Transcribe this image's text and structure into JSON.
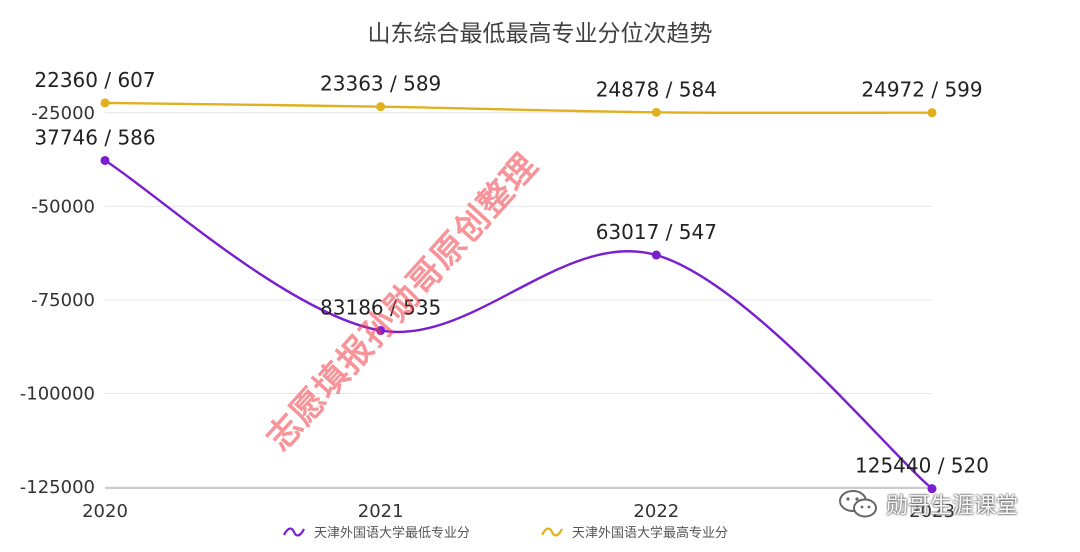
{
  "chart_data": {
    "type": "line",
    "title": "山东综合最低最高专业分位次趋势",
    "categories": [
      "2020",
      "2021",
      "2022",
      "2023"
    ],
    "yticks": [
      "-25000",
      "-50000",
      "-75000",
      "-100000",
      "-125000"
    ],
    "ylim": [
      -125000,
      -12500
    ],
    "grid": true,
    "legend_position": "bottom",
    "series": [
      {
        "name": "天津外国语大学最低专业分",
        "color": "#7a1fd0",
        "ranks": [
          37746,
          83186,
          63017,
          125440
        ],
        "scores": [
          586,
          535,
          547,
          520
        ],
        "labels": [
          "37746 / 586",
          "83186 / 535",
          "63017 / 547",
          "125440 / 520"
        ]
      },
      {
        "name": "天津外国语大学最高专业分",
        "color": "#e0b020",
        "ranks": [
          22360,
          23363,
          24878,
          24972
        ],
        "scores": [
          607,
          589,
          584,
          599
        ],
        "labels": [
          "22360 / 607",
          "23363 / 589",
          "24878 / 584",
          "24972 / 599"
        ]
      }
    ]
  },
  "watermark": "志愿填报孙勋哥原创整理",
  "brand": "勋哥生涯课堂"
}
